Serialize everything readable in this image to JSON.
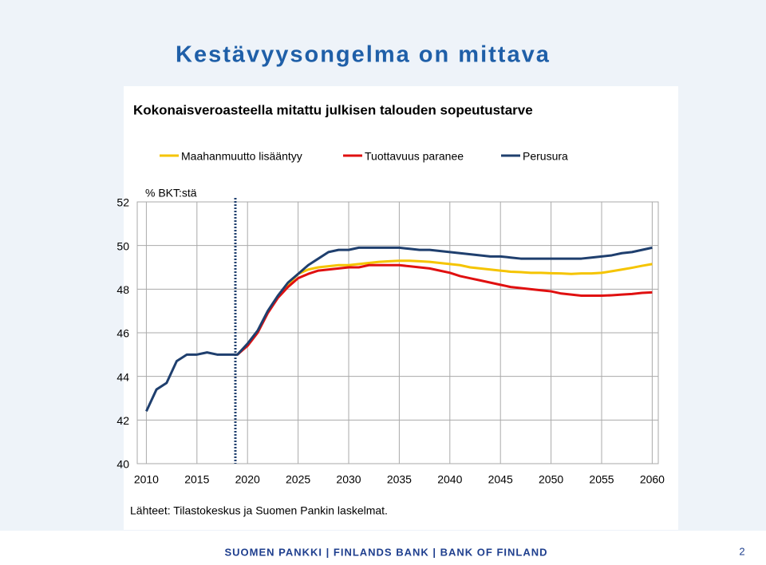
{
  "slide": {
    "title": "Kestävyysongelma on mittava",
    "footer": "SUOMEN PANKKI | FINLANDS BANK | BANK OF FINLAND",
    "page": "2"
  },
  "chart_data": {
    "type": "line",
    "title": "Kokonaisveroasteella mitattu julkisen talouden sopeutustarve",
    "ylabel": "% BKT:stä",
    "source": "Lähteet: Tilastokeskus ja Suomen Pankin laskelmat.",
    "x": [
      2010,
      2011,
      2012,
      2013,
      2014,
      2015,
      2016,
      2017,
      2018,
      2019,
      2020,
      2021,
      2022,
      2023,
      2024,
      2025,
      2026,
      2027,
      2028,
      2029,
      2030,
      2031,
      2032,
      2033,
      2034,
      2035,
      2036,
      2037,
      2038,
      2039,
      2040,
      2041,
      2042,
      2043,
      2044,
      2045,
      2046,
      2047,
      2048,
      2049,
      2050,
      2051,
      2052,
      2053,
      2054,
      2055,
      2056,
      2057,
      2058,
      2059,
      2060
    ],
    "series": [
      {
        "name": "Maahanmuutto lisääntyy",
        "color": "#f5c400",
        "values": [
          null,
          null,
          null,
          null,
          null,
          null,
          null,
          null,
          null,
          45.0,
          45.45,
          46.05,
          46.95,
          47.65,
          48.2,
          48.7,
          48.9,
          49.0,
          49.05,
          49.1,
          49.1,
          49.15,
          49.2,
          49.25,
          49.28,
          49.3,
          49.3,
          49.28,
          49.25,
          49.2,
          49.15,
          49.1,
          49.0,
          48.95,
          48.9,
          48.85,
          48.8,
          48.78,
          48.75,
          48.75,
          48.73,
          48.72,
          48.7,
          48.72,
          48.72,
          48.75,
          48.82,
          48.9,
          48.98,
          49.07,
          49.15
        ]
      },
      {
        "name": "Tuottavuus paranee",
        "color": "#e01010",
        "values": [
          null,
          null,
          null,
          null,
          null,
          null,
          null,
          null,
          null,
          45.0,
          45.4,
          46.0,
          46.9,
          47.6,
          48.1,
          48.5,
          48.7,
          48.85,
          48.9,
          48.95,
          49.0,
          49.0,
          49.1,
          49.1,
          49.1,
          49.1,
          49.05,
          49.0,
          48.95,
          48.85,
          48.75,
          48.6,
          48.5,
          48.4,
          48.3,
          48.2,
          48.1,
          48.05,
          48.0,
          47.95,
          47.9,
          47.8,
          47.75,
          47.7,
          47.7,
          47.7,
          47.72,
          47.75,
          47.78,
          47.83,
          47.85
        ]
      },
      {
        "name": "Perusura",
        "color": "#1f3f6e",
        "values": [
          42.4,
          43.4,
          43.7,
          44.7,
          45.0,
          45.0,
          45.1,
          45.0,
          45.0,
          45.0,
          45.5,
          46.1,
          47.0,
          47.7,
          48.3,
          48.7,
          49.1,
          49.4,
          49.7,
          49.8,
          49.8,
          49.9,
          49.9,
          49.9,
          49.9,
          49.9,
          49.85,
          49.8,
          49.8,
          49.75,
          49.7,
          49.65,
          49.6,
          49.55,
          49.5,
          49.5,
          49.45,
          49.4,
          49.4,
          49.4,
          49.4,
          49.4,
          49.4,
          49.4,
          49.45,
          49.5,
          49.55,
          49.65,
          49.7,
          49.8,
          49.9
        ]
      }
    ],
    "xlim": [
      2009.1,
      2060.6
    ],
    "xticks": [
      2010,
      2015,
      2020,
      2025,
      2030,
      2035,
      2040,
      2045,
      2050,
      2055,
      2060
    ],
    "ylim": [
      40,
      52
    ],
    "yticks": [
      40,
      42,
      44,
      46,
      48,
      50,
      52
    ],
    "grid": true,
    "divider_x": 2018.8
  }
}
